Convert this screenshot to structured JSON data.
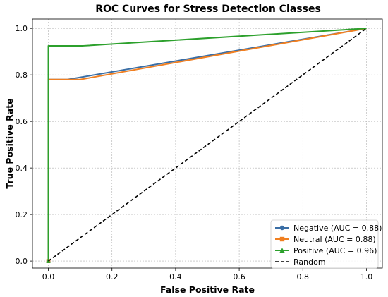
{
  "chart_data": {
    "type": "line",
    "title": "ROC Curves for Stress Detection Classes",
    "xlabel": "False Positive Rate",
    "ylabel": "True Positive Rate",
    "xlim": [
      -0.05,
      1.05
    ],
    "ylim": [
      -0.03,
      1.04
    ],
    "xticks": [
      0.0,
      0.2,
      0.4,
      0.6,
      0.8,
      1.0
    ],
    "yticks": [
      0.0,
      0.2,
      0.4,
      0.6,
      0.8,
      1.0
    ],
    "xtick_labels": [
      "0.0",
      "0.2",
      "0.4",
      "0.6",
      "0.8",
      "1.0"
    ],
    "ytick_labels": [
      "0.0",
      "0.2",
      "0.4",
      "0.6",
      "0.8",
      "1.0"
    ],
    "grid": true,
    "legend_position": "bottom-right",
    "series": [
      {
        "name": "Negative (AUC = 0.88)",
        "color": "#3a6ea5",
        "marker": "circle",
        "x": [
          0.0,
          0.0,
          0.06,
          1.0
        ],
        "y": [
          0.0,
          0.78,
          0.78,
          1.0
        ]
      },
      {
        "name": "Neutral (AUC = 0.88)",
        "color": "#f07f21",
        "marker": "square",
        "x": [
          0.0,
          0.0,
          0.1,
          1.0
        ],
        "y": [
          0.0,
          0.78,
          0.78,
          1.0
        ]
      },
      {
        "name": "Positive (AUC = 0.96)",
        "color": "#2ca02c",
        "marker": "triangle",
        "x": [
          0.0,
          0.0,
          0.11,
          1.0
        ],
        "y": [
          0.0,
          0.925,
          0.925,
          1.0
        ]
      },
      {
        "name": "Random",
        "color": "#000000",
        "style": "dashed",
        "x": [
          0.0,
          1.0
        ],
        "y": [
          0.0,
          1.0
        ]
      }
    ]
  }
}
